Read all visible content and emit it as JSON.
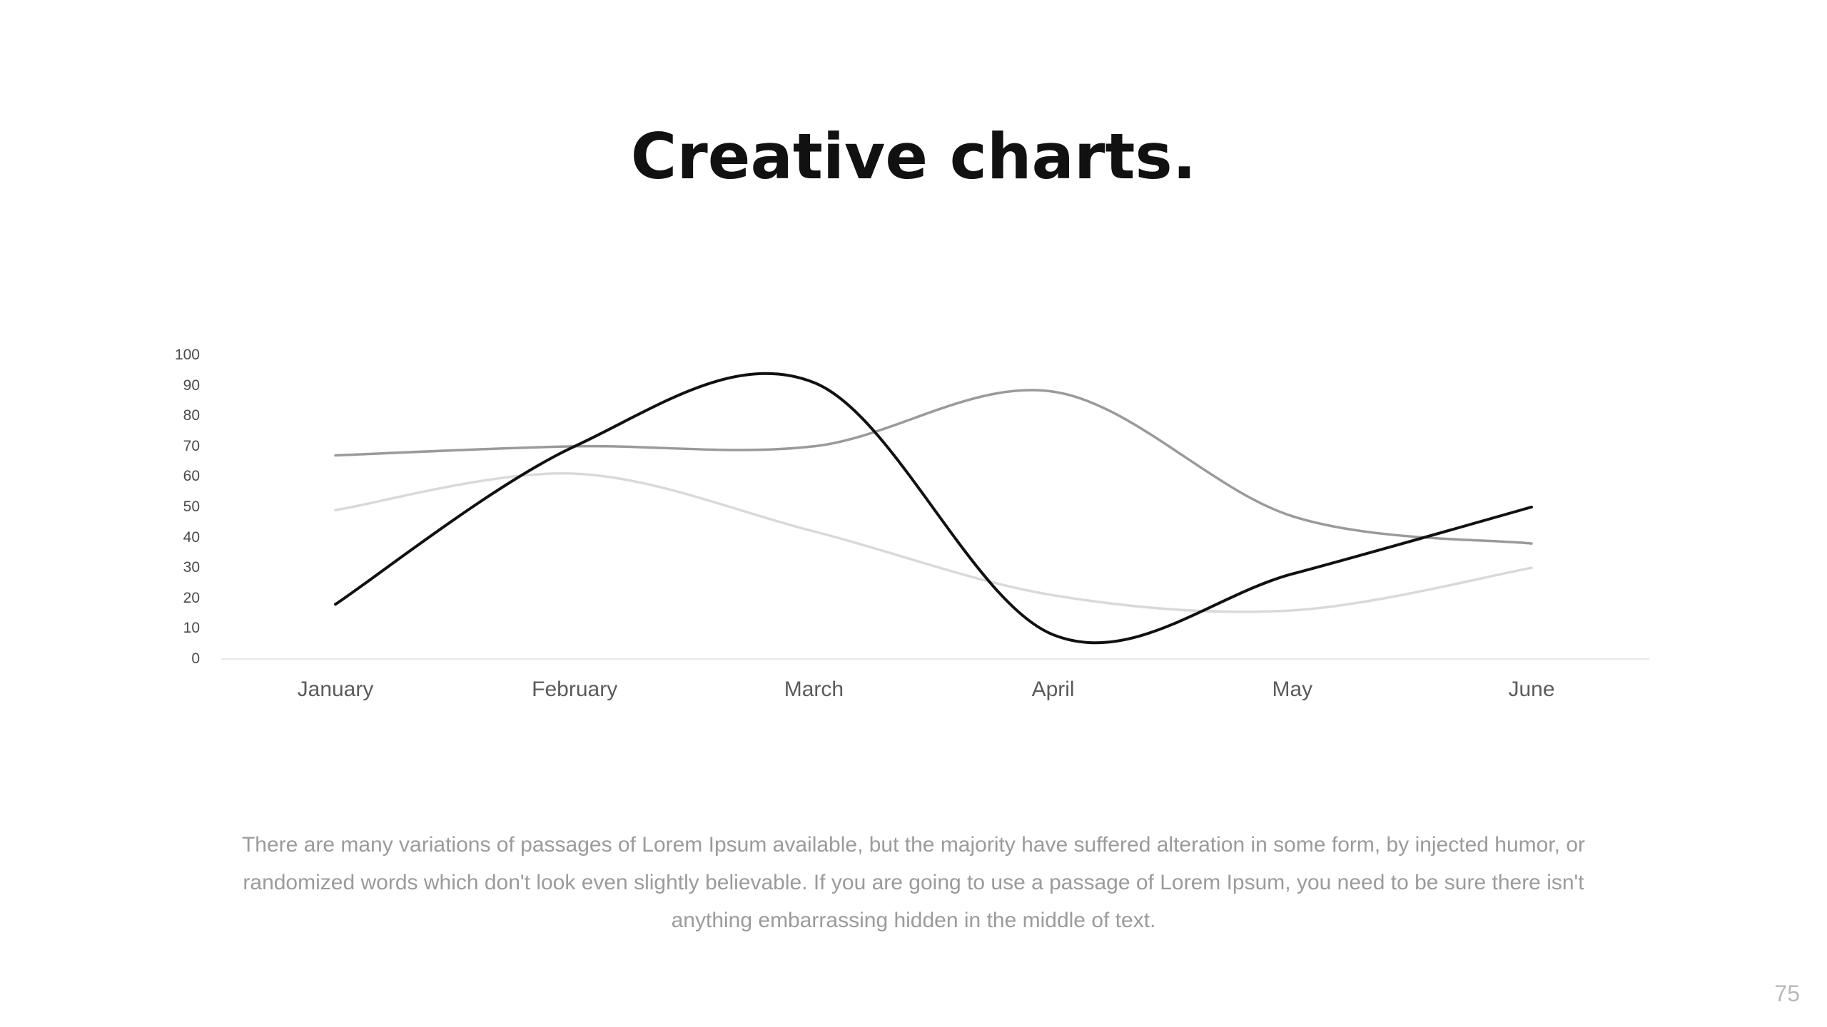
{
  "slide": {
    "title": "Creative charts.",
    "page_number": "75",
    "paragraph_lines": [
      "There are many variations of passages of Lorem Ipsum available, but the majority have suffered alteration in some form, by injected humor, or",
      "randomized words which don't look even slightly believable. If you are going to use a passage of Lorem Ipsum, you need to be sure there isn't",
      "anything embarrassing hidden in the middle of text."
    ]
  },
  "chart_data": {
    "type": "line",
    "title": "",
    "xlabel": "",
    "ylabel": "",
    "categories": [
      "January",
      "February",
      "March",
      "April",
      "May",
      "June"
    ],
    "series": [
      {
        "name": "series-light-gray",
        "color": "#d9d9d9",
        "stroke_width": 3.5,
        "values": [
          49,
          61,
          42,
          21,
          16,
          30
        ]
      },
      {
        "name": "series-dark-gray",
        "color": "#9a9a9a",
        "stroke_width": 3.5,
        "values": [
          67,
          70,
          70,
          88,
          47,
          38
        ]
      },
      {
        "name": "series-black",
        "color": "#111111",
        "stroke_width": 4,
        "values": [
          18,
          70,
          91,
          8,
          28,
          50
        ]
      }
    ],
    "ylim": [
      0,
      100
    ],
    "ytick_step": 10,
    "grid": false,
    "legend": "none",
    "axis_line_color": "#e2e2e2"
  }
}
